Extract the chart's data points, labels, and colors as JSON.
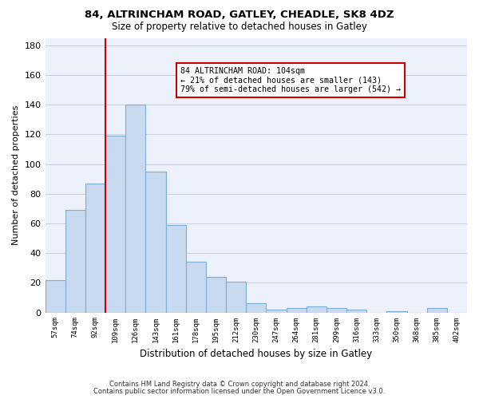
{
  "title1": "84, ALTRINCHAM ROAD, GATLEY, CHEADLE, SK8 4DZ",
  "title2": "Size of property relative to detached houses in Gatley",
  "xlabel": "Distribution of detached houses by size in Gatley",
  "ylabel": "Number of detached properties",
  "bar_labels": [
    "57sqm",
    "74sqm",
    "92sqm",
    "109sqm",
    "126sqm",
    "143sqm",
    "161sqm",
    "178sqm",
    "195sqm",
    "212sqm",
    "230sqm",
    "247sqm",
    "264sqm",
    "281sqm",
    "299sqm",
    "316sqm",
    "333sqm",
    "350sqm",
    "368sqm",
    "385sqm",
    "402sqm"
  ],
  "bar_values": [
    22,
    69,
    87,
    119,
    140,
    95,
    59,
    34,
    24,
    21,
    6,
    2,
    3,
    4,
    3,
    2,
    0,
    1,
    0,
    3,
    0
  ],
  "bar_color": "#c9d9f0",
  "bar_edge_color": "#7bafd4",
  "grid_color": "#c8cfe0",
  "vline_color": "#cc0000",
  "annotation_text": "84 ALTRINCHAM ROAD: 104sqm\n← 21% of detached houses are smaller (143)\n79% of semi-detached houses are larger (542) →",
  "annotation_box_color": "#ffffff",
  "annotation_box_edge_color": "#cc0000",
  "ylim": [
    0,
    185
  ],
  "yticks": [
    0,
    20,
    40,
    60,
    80,
    100,
    120,
    140,
    160,
    180
  ],
  "footer1": "Contains HM Land Registry data © Crown copyright and database right 2024.",
  "footer2": "Contains public sector information licensed under the Open Government Licence v3.0.",
  "bg_color": "#edf1fb"
}
